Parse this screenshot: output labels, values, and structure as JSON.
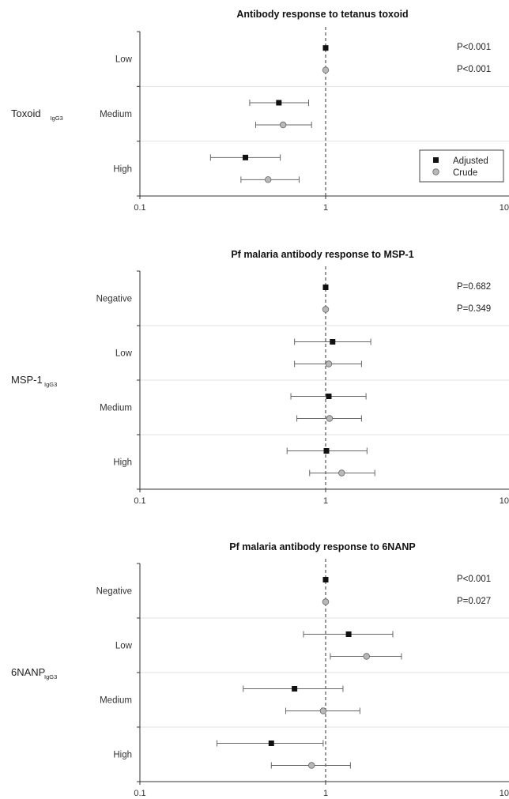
{
  "chart_data": [
    {
      "type": "scatter",
      "title": "Antibody response to tetanus toxoid",
      "row_label": "Toxoid",
      "row_label_sub": "IgG3",
      "x_scale": "log",
      "xlim": [
        0.1,
        10
      ],
      "x_ticks": [
        "0.1",
        "1",
        "10"
      ],
      "reference_line": 1,
      "categories": [
        "Low",
        "Medium",
        "High"
      ],
      "series": [
        {
          "name": "Adjusted",
          "marker": "square",
          "color": "#111111",
          "values": [
            1.0,
            0.56,
            0.37
          ],
          "ci_low": [
            null,
            0.39,
            0.24
          ],
          "ci_high": [
            null,
            0.81,
            0.57
          ]
        },
        {
          "name": "Crude",
          "marker": "circle",
          "color": "#b8b8b8",
          "values": [
            1.0,
            0.59,
            0.49
          ],
          "ci_low": [
            null,
            0.42,
            0.35
          ],
          "ci_high": [
            null,
            0.84,
            0.72
          ]
        }
      ],
      "p_values": [
        "P<0.001",
        "P<0.001"
      ],
      "legend": {
        "position": "bottom-right",
        "entries": [
          "Adjusted",
          "Crude"
        ]
      }
    },
    {
      "type": "scatter",
      "title": "Pf malaria antibody response to MSP-1",
      "row_label": "MSP-1",
      "row_label_sub": "IgG3",
      "x_scale": "log",
      "xlim": [
        0.1,
        10
      ],
      "x_ticks": [
        "0.1",
        "1",
        "10"
      ],
      "reference_line": 1,
      "categories": [
        "Negative",
        "Low",
        "Medium",
        "High"
      ],
      "series": [
        {
          "name": "Adjusted",
          "marker": "square",
          "color": "#111111",
          "values": [
            1.0,
            1.09,
            1.04,
            1.01
          ],
          "ci_low": [
            null,
            0.68,
            0.65,
            0.62
          ],
          "ci_high": [
            null,
            1.75,
            1.65,
            1.67
          ]
        },
        {
          "name": "Crude",
          "marker": "circle",
          "color": "#b8b8b8",
          "values": [
            1.0,
            1.04,
            1.05,
            1.22
          ],
          "ci_low": [
            null,
            0.68,
            0.7,
            0.82
          ],
          "ci_high": [
            null,
            1.56,
            1.56,
            1.84
          ]
        }
      ],
      "p_values": [
        "P=0.682",
        "P=0.349"
      ]
    },
    {
      "type": "scatter",
      "title": "Pf malaria antibody response to 6NANP",
      "row_label": "6NANP",
      "row_label_sub": "IgG3",
      "x_scale": "log",
      "xlim": [
        0.1,
        10
      ],
      "x_ticks": [
        "0.1",
        "1",
        "10"
      ],
      "reference_line": 1,
      "categories": [
        "Negative",
        "Low",
        "Medium",
        "High"
      ],
      "series": [
        {
          "name": "Adjusted",
          "marker": "square",
          "color": "#111111",
          "values": [
            1.0,
            1.33,
            0.68,
            0.51
          ],
          "ci_low": [
            null,
            0.76,
            0.36,
            0.26
          ],
          "ci_high": [
            null,
            2.3,
            1.24,
            0.97
          ]
        },
        {
          "name": "Crude",
          "marker": "circle",
          "color": "#b8b8b8",
          "values": [
            1.0,
            1.66,
            0.97,
            0.84
          ],
          "ci_low": [
            null,
            1.06,
            0.61,
            0.51
          ],
          "ci_high": [
            null,
            2.56,
            1.53,
            1.36
          ]
        }
      ],
      "p_values": [
        "P<0.001",
        "P=0.027"
      ]
    }
  ]
}
